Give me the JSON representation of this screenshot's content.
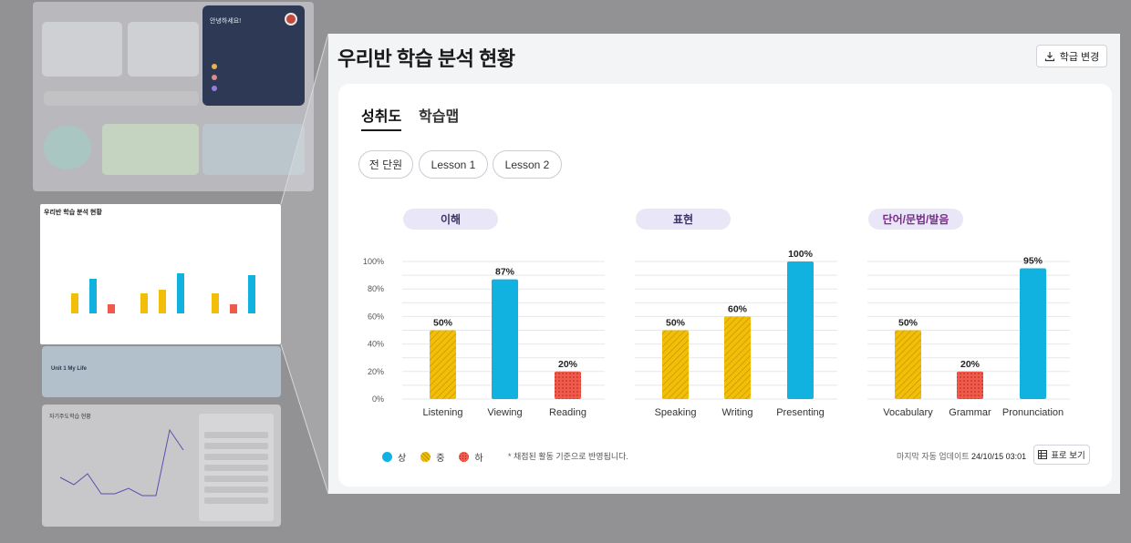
{
  "page_title": "우리반 학습 분석 현황",
  "change_button_label": "학급 변경",
  "tabs": [
    "성취도",
    "학습맵"
  ],
  "lesson_filters": [
    "전 단원",
    "Lesson 1",
    "Lesson 2"
  ],
  "categories": [
    {
      "name": "이해",
      "color": "#e9e6f7",
      "text_color": "#3a3366"
    },
    {
      "name": "표현",
      "color": "#e9e6f7",
      "text_color": "#3a3366"
    },
    {
      "name": "단어/문법/발음",
      "color": "#e9e6f7",
      "text_color": "#7a2a88"
    }
  ],
  "legend": [
    {
      "label": "상",
      "color": "#12b2e0"
    },
    {
      "label": "중",
      "color": "#f2be08"
    },
    {
      "label": "하",
      "color": "#f15a4a"
    }
  ],
  "note": "* 채점된 활동 기준으로 반영됩니다.",
  "update_label": "마지막 자동 업데이트",
  "update_time": "24/10/15 03:01",
  "table_view_label": "표로 보기",
  "background": {
    "mini_greeting": "안녕하세요!",
    "mini_chart_title": "우리반 학습 분석 현황",
    "mini_unit_text": "Unit 1 My Life",
    "mini_self_chart_title": "자기주도학습 현황"
  },
  "chart_data": [
    {
      "type": "bar",
      "title": "이해",
      "categories": [
        "Listening",
        "Viewing",
        "Reading"
      ],
      "values": [
        50,
        87,
        20
      ],
      "levels": [
        "중",
        "상",
        "하"
      ],
      "ylim": [
        0,
        100
      ],
      "yticks": [
        "0%",
        "20%",
        "40%",
        "60%",
        "80%",
        "100%"
      ],
      "grid": true
    },
    {
      "type": "bar",
      "title": "표현",
      "categories": [
        "Speaking",
        "Writing",
        "Presenting"
      ],
      "values": [
        50,
        60,
        100
      ],
      "levels": [
        "중",
        "중",
        "상"
      ],
      "ylim": [
        0,
        100
      ],
      "grid": true
    },
    {
      "type": "bar",
      "title": "단어/문법/발음",
      "categories": [
        "Vocabulary",
        "Grammar",
        "Pronunciation"
      ],
      "values": [
        50,
        20,
        95
      ],
      "levels": [
        "중",
        "하",
        "상"
      ],
      "ylim": [
        0,
        100
      ],
      "grid": true
    }
  ]
}
